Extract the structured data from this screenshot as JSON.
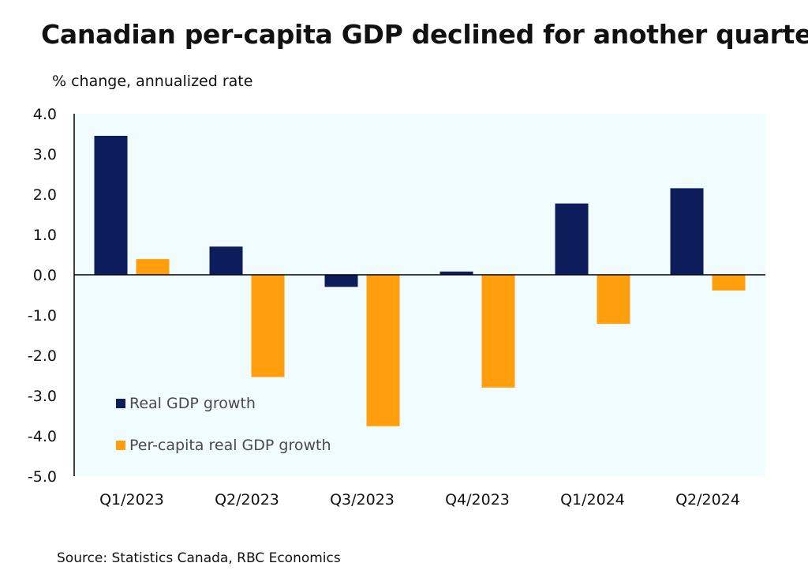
{
  "title": "Canadian per-capita GDP declined for another quarter",
  "source": "Source: Statistics Canada, RBC Economics",
  "chart_data": {
    "type": "bar",
    "title": "Canadian per-capita GDP declined for another quarter",
    "ylabel": "% change, annualized rate",
    "xlabel": "",
    "ylim": [
      -5.0,
      4.0
    ],
    "yticks": [
      "4.0",
      "3.0",
      "2.0",
      "1.0",
      "0.0",
      "-1.0",
      "-2.0",
      "-3.0",
      "-4.0",
      "-5.0"
    ],
    "categories": [
      "Q1/2023",
      "Q2/2023",
      "Q3/2023",
      "Q4/2023",
      "Q1/2024",
      "Q2/2024"
    ],
    "series": [
      {
        "name": "Real GDP growth",
        "color": "#0d1d5c",
        "values": [
          3.45,
          0.7,
          -0.3,
          0.08,
          1.77,
          2.15
        ]
      },
      {
        "name": "Per-capita real GDP growth",
        "color": "#ff9f0d",
        "values": [
          0.39,
          -2.54,
          -3.76,
          -2.8,
          -1.22,
          -0.39
        ]
      }
    ],
    "grid": false,
    "legend_position": "bottom-left",
    "plot_background": "#f0fcfd"
  }
}
